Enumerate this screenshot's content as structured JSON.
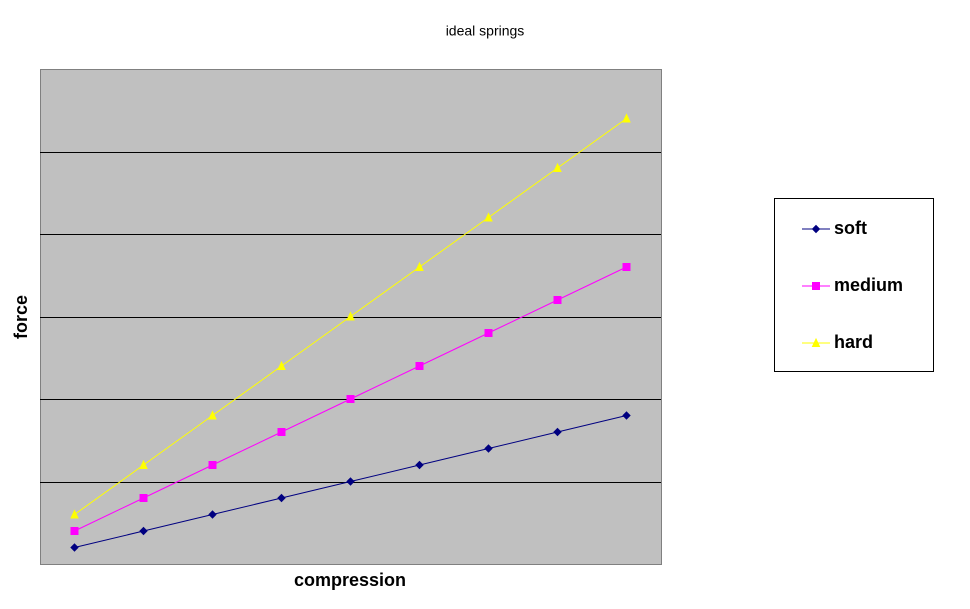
{
  "chart_data": {
    "type": "line",
    "title": "ideal springs",
    "x_label": "compression",
    "y_label": "force",
    "categories": [
      null,
      null,
      null,
      null,
      null,
      null,
      null,
      null,
      null
    ],
    "series": [
      {
        "name": "soft",
        "color": "#000080",
        "marker": "diamond",
        "values": [
          0.2,
          0.4,
          0.6,
          0.8,
          1.0,
          1.2,
          1.4,
          1.6,
          1.8
        ]
      },
      {
        "name": "medium",
        "color": "#ff00ff",
        "marker": "square",
        "values": [
          0.4,
          0.8,
          1.2,
          1.6,
          2.0,
          2.4,
          2.8,
          3.2,
          3.6
        ]
      },
      {
        "name": "hard",
        "color": "#ffff00",
        "marker": "triangle",
        "values": [
          0.6,
          1.2,
          1.8,
          2.4,
          3.0,
          3.6,
          4.2,
          4.8,
          5.4
        ]
      }
    ],
    "ylim": [
      0,
      6
    ],
    "yticks": [
      1,
      2,
      3,
      4,
      5
    ],
    "grid": true,
    "legend": "right"
  }
}
